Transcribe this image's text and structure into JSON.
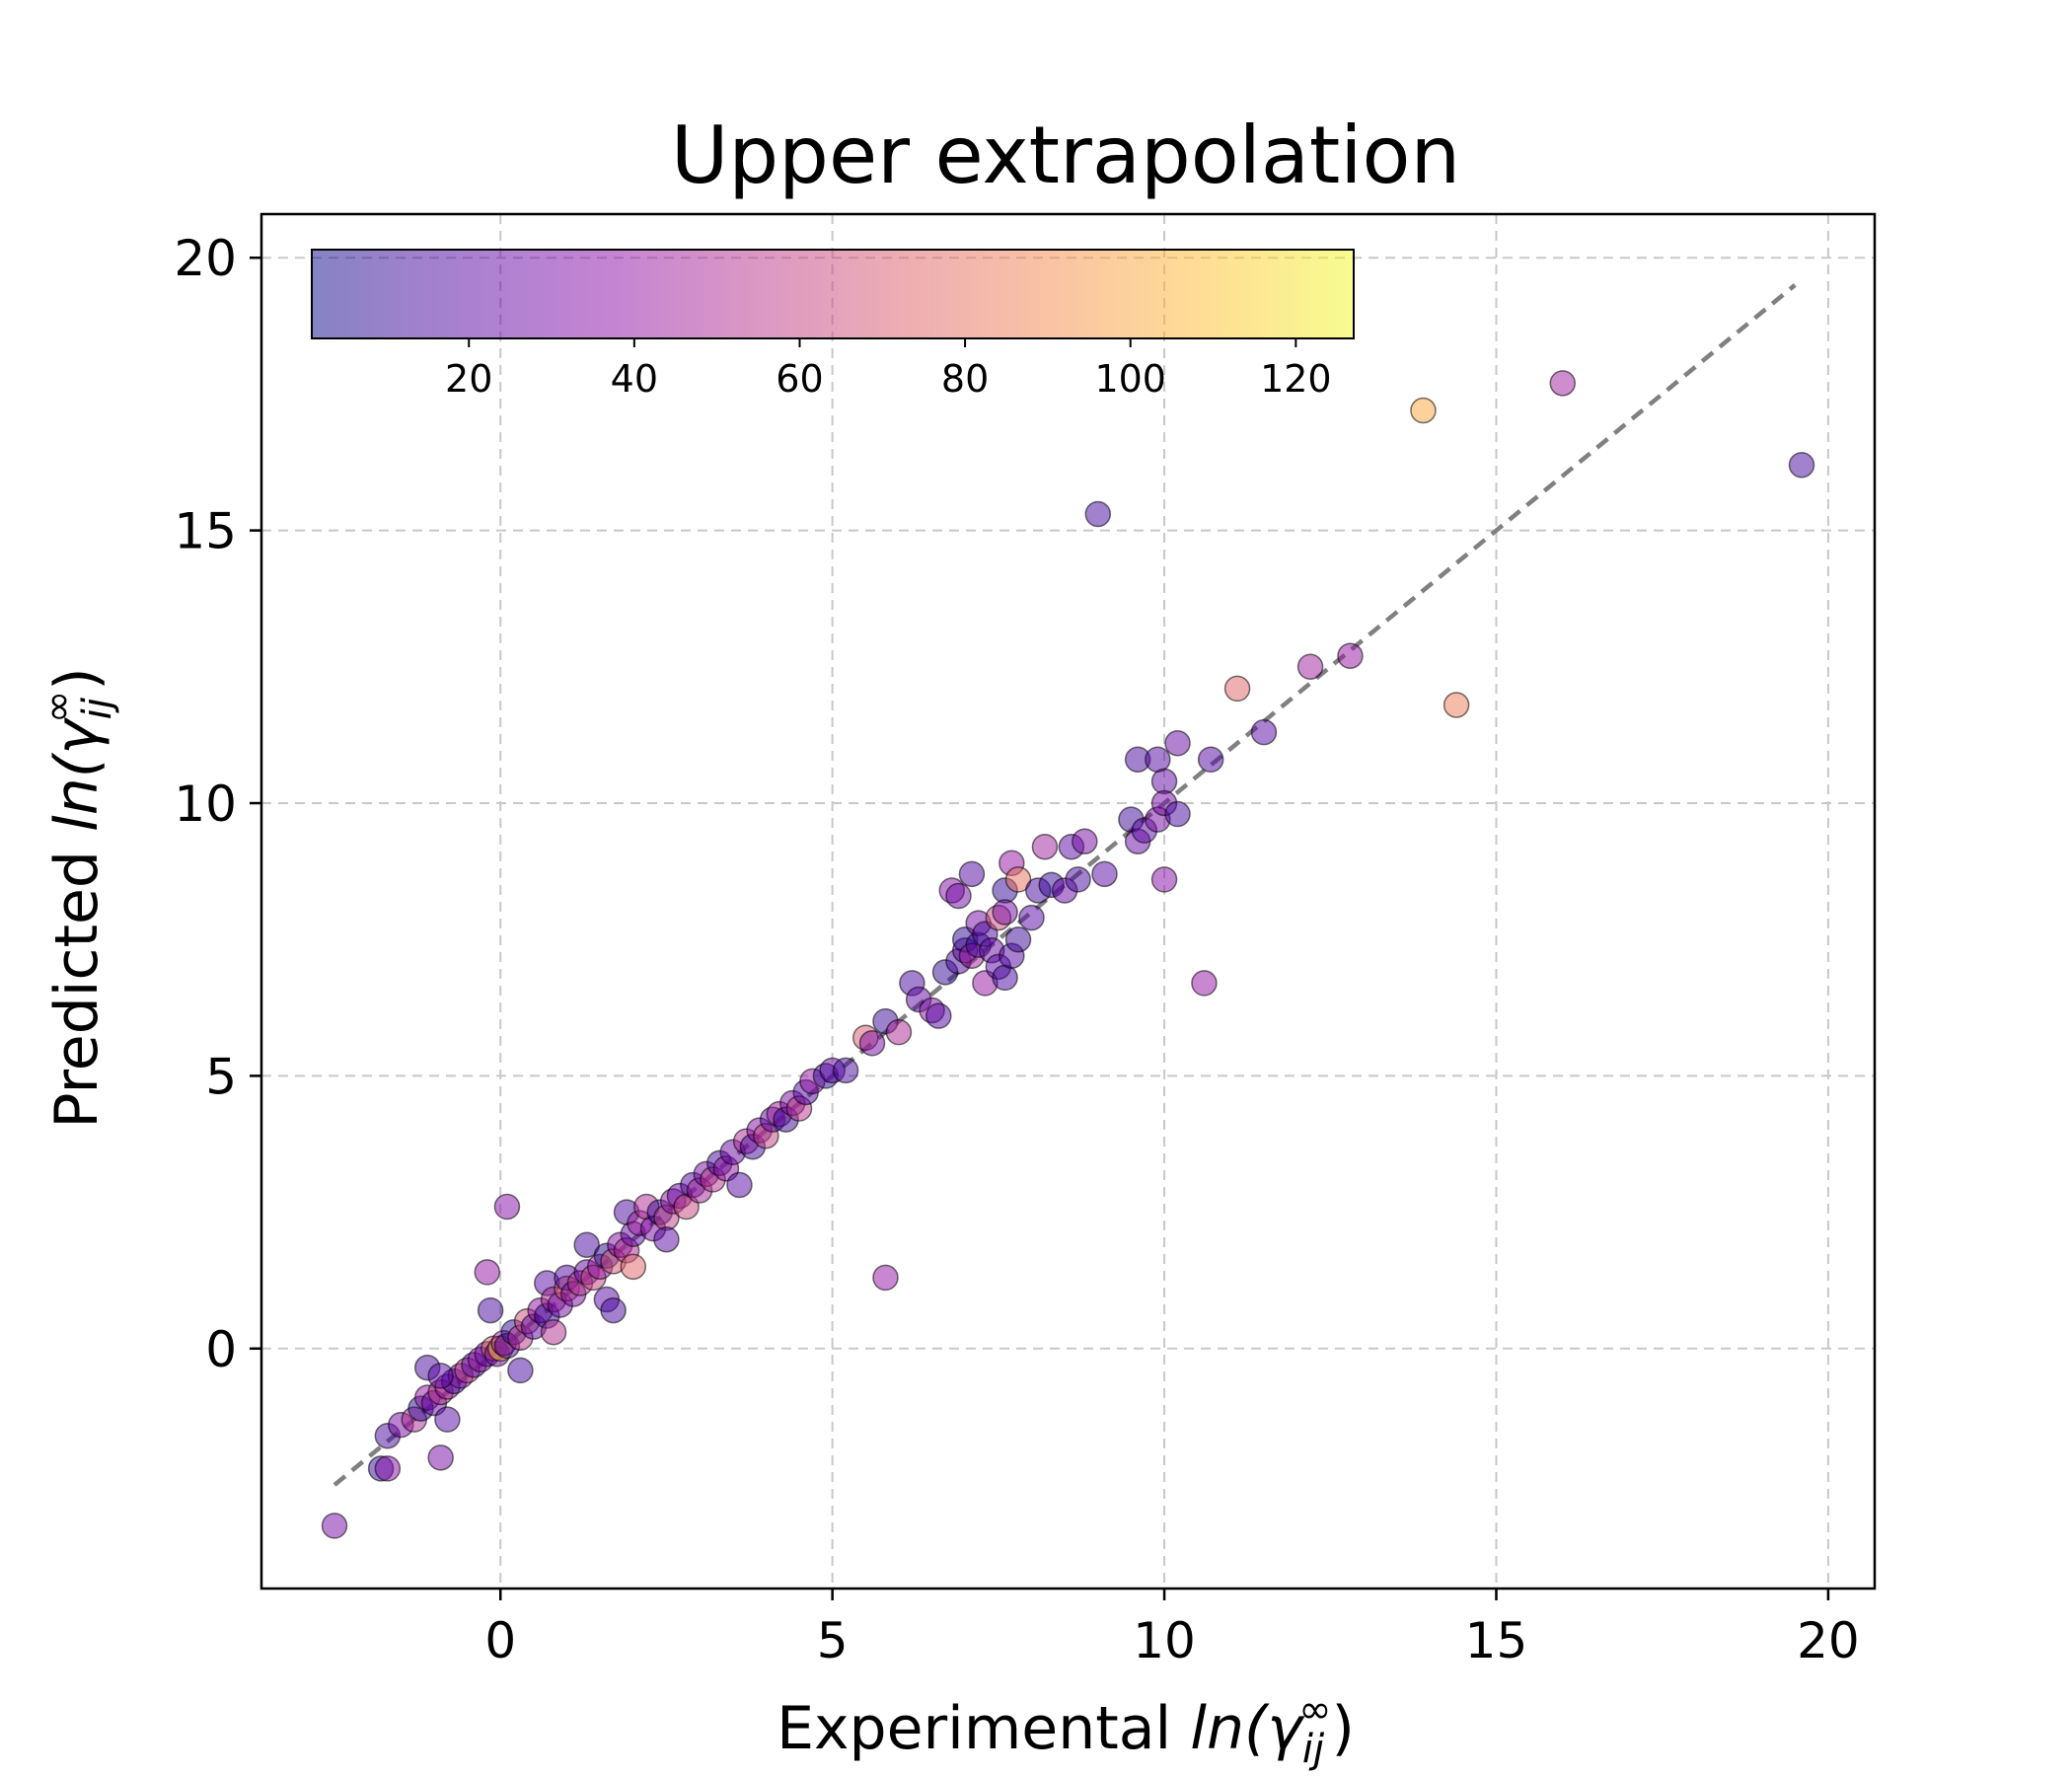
{
  "chart_data": {
    "type": "scatter",
    "title": "Upper extrapolation",
    "xlabel": {
      "prefix": "Experimental ",
      "math": "ln(γ",
      "sub": "ij",
      "sup": "∞",
      "close": ")"
    },
    "ylabel": {
      "prefix": "Predicted ",
      "math": "ln(γ",
      "sub": "ij",
      "sup": "∞",
      "close": ")"
    },
    "xlim": [
      -3.6,
      20.7
    ],
    "ylim": [
      -4.4,
      20.8
    ],
    "xticks": [
      0,
      5,
      10,
      15,
      20
    ],
    "yticks": [
      0,
      5,
      10,
      15,
      20
    ],
    "grid": true,
    "reference_line": {
      "from": [
        -2.5,
        -2.5
      ],
      "to": [
        19.5,
        19.5
      ],
      "style": "dashed",
      "color": "#808080"
    },
    "colorbar": {
      "placement": "top-left, horizontal",
      "colormap": "plasma (alpha 0.5)",
      "range": [
        1,
        127
      ],
      "ticks": [
        20,
        40,
        60,
        80,
        100,
        120
      ]
    },
    "points": [
      [
        -2.5,
        -3.25,
        30
      ],
      [
        -1.8,
        -2.2,
        10
      ],
      [
        -1.7,
        -2.2,
        35
      ],
      [
        -1.7,
        -1.6,
        15
      ],
      [
        -1.5,
        -1.4,
        30
      ],
      [
        -1.3,
        -1.3,
        50
      ],
      [
        -1.2,
        -1.1,
        8
      ],
      [
        -1.1,
        -0.9,
        40
      ],
      [
        -1.0,
        -1.0,
        25
      ],
      [
        -0.9,
        -0.8,
        55
      ],
      [
        -0.9,
        -2.0,
        30
      ],
      [
        -0.8,
        -1.3,
        20
      ],
      [
        -0.8,
        -0.7,
        45
      ],
      [
        -0.7,
        -0.6,
        12
      ],
      [
        -0.6,
        -0.5,
        35
      ],
      [
        -1.1,
        -0.35,
        15
      ],
      [
        -0.9,
        -0.5,
        20
      ],
      [
        -0.5,
        -0.4,
        60
      ],
      [
        -0.4,
        -0.3,
        18
      ],
      [
        -0.3,
        -0.2,
        40
      ],
      [
        -0.2,
        -0.1,
        25
      ],
      [
        -0.15,
        0.7,
        15
      ],
      [
        -0.1,
        0.0,
        75
      ],
      [
        -0.05,
        -0.1,
        30
      ],
      [
        0.0,
        0.0,
        110
      ],
      [
        0.05,
        0.1,
        45
      ],
      [
        0.1,
        0.05,
        20
      ],
      [
        0.1,
        2.6,
        35
      ],
      [
        -0.2,
        1.4,
        40
      ],
      [
        0.2,
        0.3,
        10
      ],
      [
        0.3,
        0.2,
        55
      ],
      [
        0.3,
        -0.4,
        15
      ],
      [
        0.4,
        0.5,
        65
      ],
      [
        0.5,
        0.4,
        22
      ],
      [
        0.6,
        0.7,
        38
      ],
      [
        0.7,
        0.6,
        12
      ],
      [
        0.7,
        1.2,
        20
      ],
      [
        0.8,
        0.9,
        48
      ],
      [
        0.8,
        0.3,
        52
      ],
      [
        0.9,
        0.8,
        28
      ],
      [
        1.0,
        1.1,
        70
      ],
      [
        1.0,
        1.3,
        18
      ],
      [
        1.1,
        1.0,
        32
      ],
      [
        1.2,
        1.2,
        55
      ],
      [
        1.3,
        1.4,
        24
      ],
      [
        1.3,
        1.9,
        15
      ],
      [
        1.4,
        1.3,
        60
      ],
      [
        1.5,
        1.5,
        42
      ],
      [
        1.6,
        1.7,
        8
      ],
      [
        1.6,
        0.9,
        20
      ],
      [
        1.7,
        1.6,
        68
      ],
      [
        1.7,
        0.7,
        15
      ],
      [
        1.8,
        1.9,
        35
      ],
      [
        1.9,
        1.8,
        50
      ],
      [
        2.0,
        1.5,
        75
      ],
      [
        1.9,
        2.5,
        15
      ],
      [
        2.0,
        2.1,
        22
      ],
      [
        2.1,
        2.3,
        45
      ],
      [
        2.2,
        2.6,
        50
      ],
      [
        2.3,
        2.2,
        30
      ],
      [
        2.4,
        2.5,
        12
      ],
      [
        2.5,
        2.4,
        58
      ],
      [
        2.5,
        2.0,
        20
      ],
      [
        2.6,
        2.7,
        40
      ],
      [
        2.7,
        2.8,
        25
      ],
      [
        2.8,
        2.6,
        62
      ],
      [
        2.9,
        3.0,
        18
      ],
      [
        3.0,
        2.9,
        46
      ],
      [
        3.1,
        3.2,
        30
      ],
      [
        3.2,
        3.1,
        55
      ],
      [
        3.3,
        3.4,
        14
      ],
      [
        3.4,
        3.3,
        40
      ],
      [
        3.5,
        3.6,
        25
      ],
      [
        3.6,
        3.0,
        20
      ],
      [
        3.7,
        3.8,
        50
      ],
      [
        3.8,
        3.7,
        16
      ],
      [
        3.9,
        4.0,
        35
      ],
      [
        4.0,
        3.9,
        60
      ],
      [
        4.1,
        4.2,
        22
      ],
      [
        4.2,
        4.3,
        45
      ],
      [
        4.3,
        4.2,
        12
      ],
      [
        4.4,
        4.5,
        30
      ],
      [
        4.5,
        4.4,
        55
      ],
      [
        4.6,
        4.7,
        18
      ],
      [
        4.7,
        4.9,
        40
      ],
      [
        4.9,
        5.0,
        10
      ],
      [
        5.0,
        5.1,
        25
      ],
      [
        5.2,
        5.1,
        15
      ],
      [
        5.5,
        5.7,
        70
      ],
      [
        5.6,
        5.6,
        30
      ],
      [
        5.8,
        1.3,
        40
      ],
      [
        5.8,
        6.0,
        12
      ],
      [
        6.0,
        5.8,
        50
      ],
      [
        6.2,
        6.7,
        15
      ],
      [
        6.3,
        6.4,
        22
      ],
      [
        6.5,
        6.2,
        35
      ],
      [
        6.6,
        6.1,
        18
      ],
      [
        6.7,
        6.9,
        10
      ],
      [
        6.8,
        8.4,
        35
      ],
      [
        6.9,
        7.1,
        15
      ],
      [
        6.9,
        8.3,
        28
      ],
      [
        7.0,
        7.3,
        20
      ],
      [
        7.0,
        7.5,
        8
      ],
      [
        7.1,
        8.7,
        18
      ],
      [
        7.1,
        7.2,
        45
      ],
      [
        7.2,
        7.4,
        12
      ],
      [
        7.2,
        7.8,
        30
      ],
      [
        7.3,
        6.7,
        40
      ],
      [
        7.3,
        7.6,
        15
      ],
      [
        7.4,
        7.3,
        25
      ],
      [
        7.5,
        7.9,
        65
      ],
      [
        7.5,
        7.0,
        20
      ],
      [
        7.6,
        6.8,
        15
      ],
      [
        7.6,
        8.4,
        10
      ],
      [
        7.6,
        8.0,
        28
      ],
      [
        7.7,
        7.2,
        18
      ],
      [
        7.7,
        8.9,
        40
      ],
      [
        7.8,
        8.6,
        80
      ],
      [
        7.8,
        7.5,
        12
      ],
      [
        8.0,
        7.9,
        20
      ],
      [
        8.1,
        8.4,
        15
      ],
      [
        8.2,
        9.2,
        45
      ],
      [
        8.3,
        8.5,
        10
      ],
      [
        8.5,
        8.4,
        25
      ],
      [
        8.6,
        9.2,
        20
      ],
      [
        8.7,
        8.6,
        15
      ],
      [
        8.8,
        9.3,
        30
      ],
      [
        9.0,
        15.3,
        15
      ],
      [
        9.1,
        8.7,
        20
      ],
      [
        9.5,
        9.7,
        12
      ],
      [
        9.6,
        9.3,
        25
      ],
      [
        9.6,
        10.8,
        15
      ],
      [
        9.7,
        9.5,
        20
      ],
      [
        9.9,
        10.8,
        18
      ],
      [
        9.9,
        9.7,
        30
      ],
      [
        10.0,
        10.4,
        22
      ],
      [
        10.0,
        8.6,
        35
      ],
      [
        10.0,
        10.0,
        28
      ],
      [
        10.2,
        9.8,
        15
      ],
      [
        10.2,
        11.1,
        25
      ],
      [
        10.6,
        6.7,
        40
      ],
      [
        10.7,
        10.8,
        18
      ],
      [
        11.1,
        12.1,
        75
      ],
      [
        11.5,
        11.3,
        20
      ],
      [
        12.2,
        12.5,
        45
      ],
      [
        12.8,
        12.7,
        40
      ],
      [
        13.9,
        17.2,
        100
      ],
      [
        14.4,
        11.8,
        85
      ],
      [
        16.0,
        17.7,
        45
      ],
      [
        19.6,
        16.2,
        15
      ]
    ]
  }
}
